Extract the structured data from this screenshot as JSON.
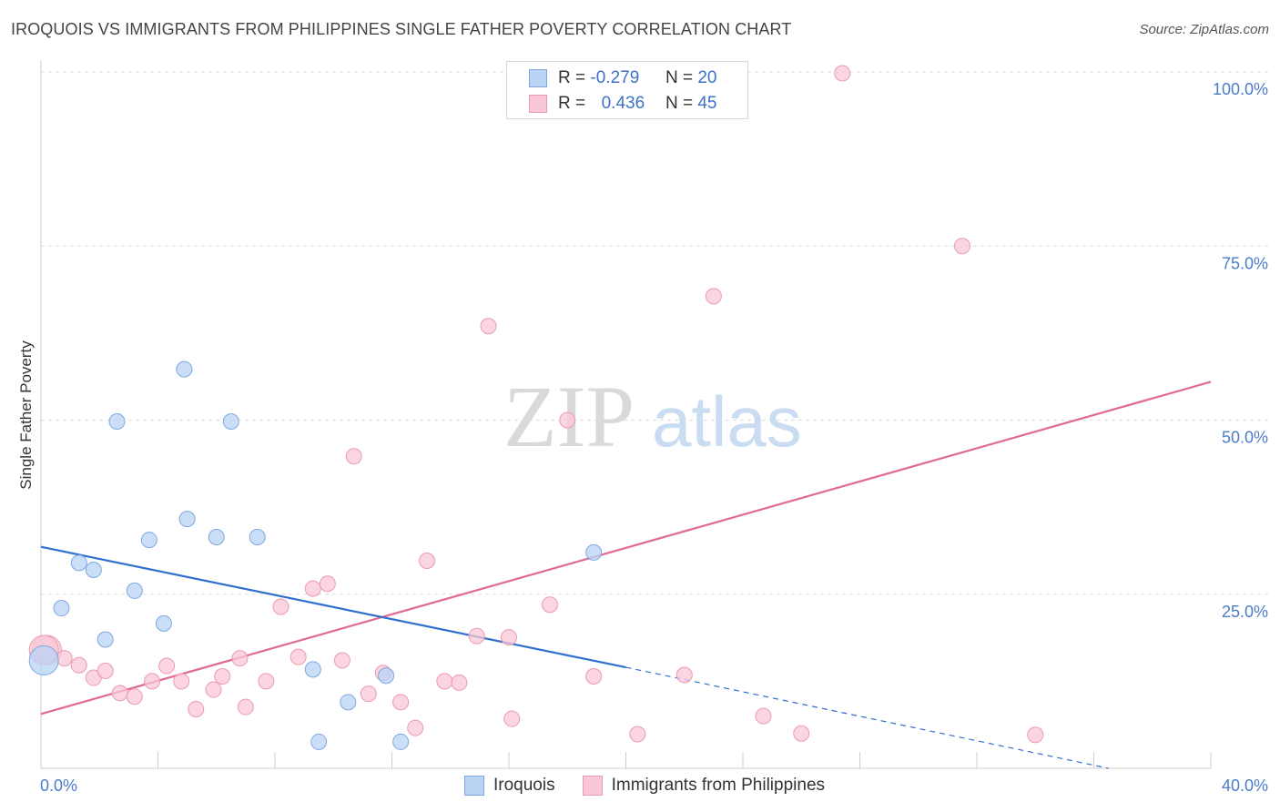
{
  "header": {
    "title": "IROQUOIS VS IMMIGRANTS FROM PHILIPPINES SINGLE FATHER POVERTY CORRELATION CHART",
    "source": "Source: ZipAtlas.com"
  },
  "watermark": {
    "zip": "ZIP",
    "atlas": "atlas"
  },
  "legend": {
    "rows": [
      {
        "r_label": "R =",
        "r_value": "-0.279",
        "n_label": "N =",
        "n_value": "20"
      },
      {
        "r_label": "R =",
        "r_value": "0.436",
        "n_label": "N =",
        "n_value": "45"
      }
    ]
  },
  "colors": {
    "iroquois_fill": "#b9d3f5",
    "iroquois_stroke": "#7fa8e0",
    "iroquois_line": "#2f6fcf",
    "philippines_fill": "#f9c7d6",
    "philippines_stroke": "#ec9ab4",
    "philippines_line": "#e06a93",
    "tick_label": "#4a7cc9"
  },
  "chart_data": {
    "type": "scatter",
    "xlabel": "",
    "ylabel": "Single Father Poverty",
    "xlim": [
      0,
      40
    ],
    "ylim": [
      0,
      100
    ],
    "x_tick_labels": [
      "0.0%",
      "40.0%"
    ],
    "y_ticks": [
      25,
      50,
      75,
      100
    ],
    "y_tick_labels": [
      "25.0%",
      "50.0%",
      "75.0%",
      "100.0%"
    ],
    "grid": "horizontal dashed",
    "legend_position": "top-center",
    "series": [
      {
        "name": "Iroquois",
        "r": -0.279,
        "n": 20,
        "trend": {
          "x": [
            0,
            20
          ],
          "y": [
            31.8,
            14.5
          ],
          "dashed_to": [
            36.5,
            0
          ]
        },
        "points": [
          [
            0.1,
            15.5
          ],
          [
            0.7,
            23.0
          ],
          [
            1.3,
            29.5
          ],
          [
            1.8,
            28.5
          ],
          [
            2.2,
            18.5
          ],
          [
            2.6,
            49.8
          ],
          [
            3.2,
            25.5
          ],
          [
            3.7,
            32.8
          ],
          [
            4.2,
            20.8
          ],
          [
            4.9,
            57.3
          ],
          [
            5.0,
            35.8
          ],
          [
            6.0,
            33.2
          ],
          [
            6.5,
            49.8
          ],
          [
            7.4,
            33.2
          ],
          [
            9.3,
            14.2
          ],
          [
            9.5,
            3.8
          ],
          [
            10.5,
            9.5
          ],
          [
            11.8,
            13.3
          ],
          [
            12.3,
            3.8
          ],
          [
            18.9,
            31.0
          ]
        ]
      },
      {
        "name": "Immigrants from Philippines",
        "r": 0.436,
        "n": 45,
        "trend": {
          "x": [
            0,
            40
          ],
          "y": [
            7.8,
            55.5
          ]
        },
        "points": [
          [
            0.2,
            17.0
          ],
          [
            0.8,
            15.8
          ],
          [
            1.3,
            14.8
          ],
          [
            1.8,
            13.0
          ],
          [
            2.2,
            14.0
          ],
          [
            2.7,
            10.8
          ],
          [
            3.2,
            10.3
          ],
          [
            3.8,
            12.5
          ],
          [
            4.3,
            14.7
          ],
          [
            4.8,
            12.5
          ],
          [
            5.3,
            8.5
          ],
          [
            5.9,
            11.3
          ],
          [
            6.2,
            13.2
          ],
          [
            6.8,
            15.8
          ],
          [
            7.0,
            8.8
          ],
          [
            7.7,
            12.5
          ],
          [
            8.2,
            23.2
          ],
          [
            8.8,
            16.0
          ],
          [
            9.3,
            25.8
          ],
          [
            9.8,
            26.5
          ],
          [
            10.3,
            15.5
          ],
          [
            10.7,
            44.8
          ],
          [
            11.2,
            10.7
          ],
          [
            11.7,
            13.7
          ],
          [
            12.3,
            9.5
          ],
          [
            12.8,
            5.8
          ],
          [
            13.2,
            29.8
          ],
          [
            13.8,
            12.5
          ],
          [
            14.3,
            12.3
          ],
          [
            14.9,
            19.0
          ],
          [
            15.3,
            63.5
          ],
          [
            16.0,
            18.8
          ],
          [
            16.1,
            7.1
          ],
          [
            17.4,
            23.5
          ],
          [
            18.0,
            50.0
          ],
          [
            18.9,
            13.2
          ],
          [
            20.4,
            4.9
          ],
          [
            22.0,
            13.4
          ],
          [
            23.0,
            67.8
          ],
          [
            24.7,
            7.5
          ],
          [
            26.0,
            5.0
          ],
          [
            27.4,
            99.8
          ],
          [
            31.5,
            75.0
          ],
          [
            34.0,
            4.8
          ],
          [
            0.1,
            17.0
          ]
        ]
      }
    ]
  },
  "bottom_legend": [
    {
      "label": "Iroquois"
    },
    {
      "label": "Immigrants from Philippines"
    }
  ]
}
